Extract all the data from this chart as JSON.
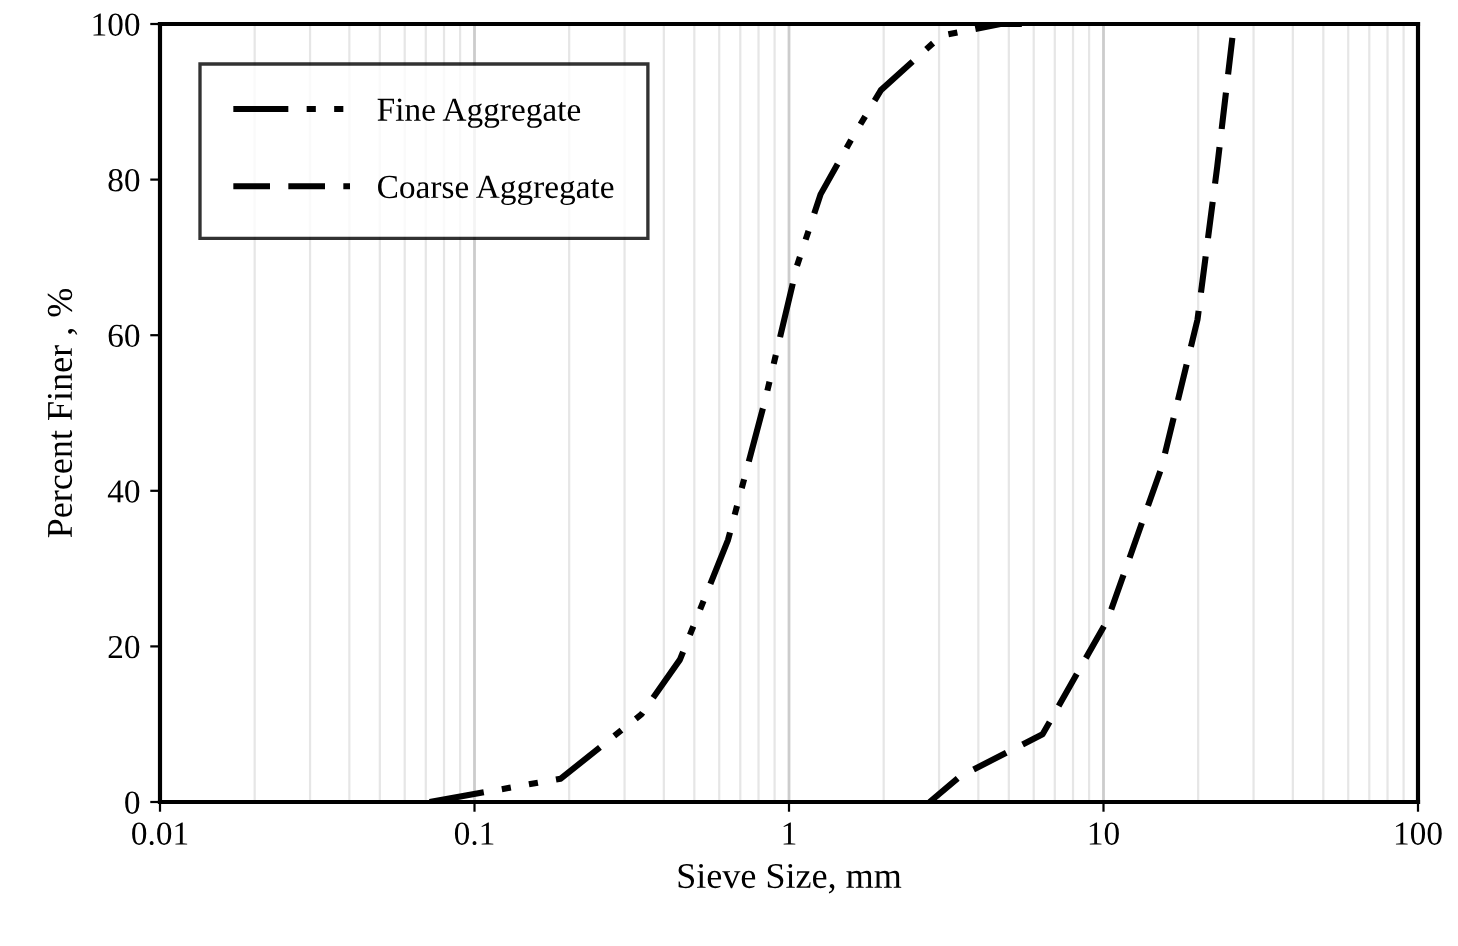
{
  "chart_data": {
    "type": "line",
    "xlabel": "Sieve Size, mm",
    "ylabel": "Percent Finer , %",
    "log": "x",
    "xlim": [
      0.01,
      100
    ],
    "xticks": [
      0.01,
      0.1,
      1,
      10,
      100
    ],
    "ylim": [
      0,
      100
    ],
    "yticks": [
      0,
      20,
      40,
      60,
      80,
      100
    ],
    "grid": "x",
    "legend": "top left",
    "marker": "none",
    "series": [
      {
        "name": "Fine Aggregate",
        "color": "#000000",
        "line_style": "dashdotdot",
        "x": [
          0.072,
          0.188,
          0.34,
          0.45,
          0.64,
          0.84,
          1.06,
          1.26,
          1.57,
          1.96,
          3.05,
          4.7,
          5.5
        ],
        "values": [
          0,
          3,
          11.3,
          18.3,
          33.7,
          51.7,
          68.9,
          78.1,
          85,
          91.5,
          98.5,
          100,
          100
        ]
      },
      {
        "name": "Coarse Aggregate",
        "color": "#000000",
        "line_style": "dashed",
        "x": [
          2.8,
          3.5,
          6.4,
          10.3,
          15.3,
          19.9,
          23,
          26
        ],
        "values": [
          0,
          3.3,
          8.7,
          23.4,
          43,
          62,
          81.7,
          100
        ]
      }
    ]
  }
}
